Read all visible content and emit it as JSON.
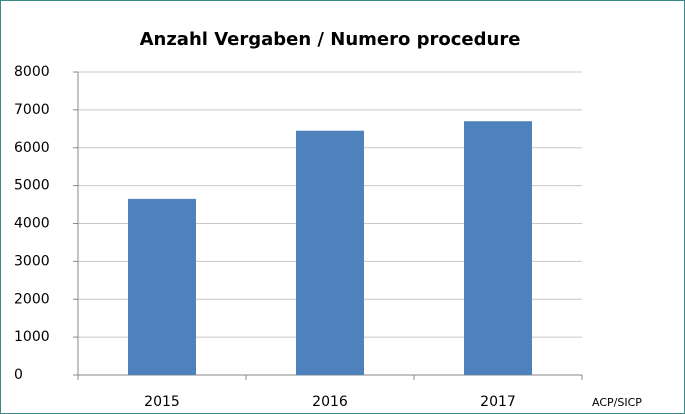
{
  "chart_data": {
    "type": "bar",
    "title": "Anzahl Vergaben / Numero procedure",
    "categories": [
      "2015",
      "2016",
      "2017"
    ],
    "values": [
      4650,
      6450,
      6700
    ],
    "color": "#4f81bd",
    "ylim": [
      0,
      8000
    ],
    "yticks": [
      0,
      1000,
      2000,
      3000,
      4000,
      5000,
      6000,
      7000,
      8000
    ],
    "grid": true,
    "annotation": "ACP/SICP"
  }
}
